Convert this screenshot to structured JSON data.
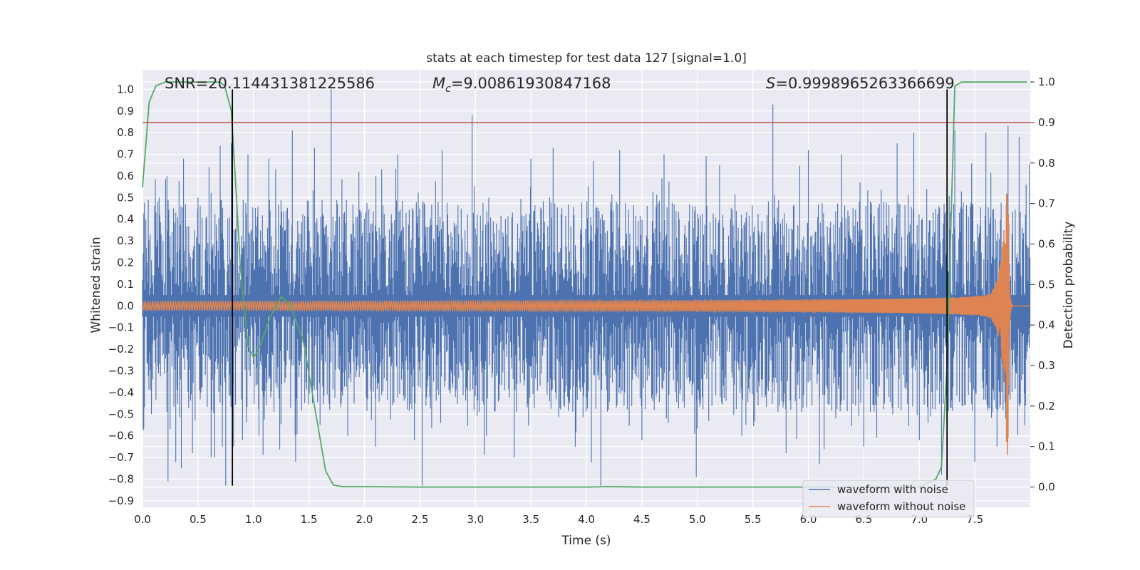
{
  "chart_data": {
    "type": "line",
    "title": "stats at each timestep for test data 127 [signal=1.0]",
    "xlabel": "Time (s)",
    "ylabel": "Whitened strain",
    "y2label": "Detection probability",
    "xlim": [
      0.0,
      8.0
    ],
    "ylim": [
      -0.93,
      1.09
    ],
    "y2lim": [
      -0.05,
      1.03
    ],
    "x_ticks": [
      0.0,
      0.5,
      1.0,
      1.5,
      2.0,
      2.5,
      3.0,
      3.5,
      4.0,
      4.5,
      5.0,
      5.5,
      6.0,
      6.5,
      7.0,
      7.5
    ],
    "y_ticks": [
      -0.9,
      -0.8,
      -0.7,
      -0.6,
      -0.5,
      -0.4,
      -0.3,
      -0.2,
      -0.1,
      0.0,
      0.1,
      0.2,
      0.3,
      0.4,
      0.5,
      0.6,
      0.7,
      0.8,
      0.9,
      1.0
    ],
    "y2_ticks": [
      0.0,
      0.1,
      0.2,
      0.3,
      0.4,
      0.5,
      0.6,
      0.7,
      0.8,
      0.9,
      1.0
    ],
    "grid": true,
    "legend_position": "lower-right",
    "annotations": {
      "snr": "SNR=20.114431381225586",
      "mc_symbol": "M",
      "mc_sub": "c",
      "mc_value": "=9.00861930847168",
      "s_symbol": "S",
      "s_value": "=0.9998965263366699"
    },
    "threshold": {
      "axis": "y2",
      "value": 0.9,
      "color": "#c44e52"
    },
    "vlines": [
      {
        "x": 0.81,
        "ymin": -0.83,
        "ymax": 1.0,
        "color": "#000000"
      },
      {
        "x": 7.25,
        "ymin": -0.83,
        "ymax": 1.0,
        "color": "#000000"
      }
    ],
    "series": [
      {
        "name": "waveform with noise",
        "color": "#4c72b0",
        "axis": "y",
        "kind": "noise",
        "core_amplitude": 0.24,
        "spikes": [
          {
            "x": 0.03,
            "y": 0.4
          },
          {
            "x": 0.08,
            "y": -0.5
          },
          {
            "x": 0.15,
            "y": 0.5
          },
          {
            "x": 0.22,
            "y": 0.6
          },
          {
            "x": 0.23,
            "y": -0.81
          },
          {
            "x": 0.28,
            "y": 0.45
          },
          {
            "x": 0.3,
            "y": -0.72
          },
          {
            "x": 0.35,
            "y": -0.75
          },
          {
            "x": 0.37,
            "y": 0.68
          },
          {
            "x": 0.45,
            "y": -0.68
          },
          {
            "x": 0.5,
            "y": 0.5
          },
          {
            "x": 0.6,
            "y": 0.64
          },
          {
            "x": 0.65,
            "y": -0.7
          },
          {
            "x": 0.7,
            "y": 0.74
          },
          {
            "x": 0.72,
            "y": -0.65
          },
          {
            "x": 0.75,
            "y": -0.83
          },
          {
            "x": 0.8,
            "y": 0.75
          },
          {
            "x": 0.95,
            "y": 0.7
          },
          {
            "x": 1.05,
            "y": -0.6
          },
          {
            "x": 1.2,
            "y": 0.63
          },
          {
            "x": 1.35,
            "y": 0.81
          },
          {
            "x": 1.38,
            "y": -0.72
          },
          {
            "x": 1.55,
            "y": 0.73
          },
          {
            "x": 1.6,
            "y": -0.55
          },
          {
            "x": 1.7,
            "y": 1.0
          },
          {
            "x": 1.85,
            "y": -0.6
          },
          {
            "x": 1.95,
            "y": 0.62
          },
          {
            "x": 2.1,
            "y": -0.65
          },
          {
            "x": 2.3,
            "y": 0.7
          },
          {
            "x": 2.45,
            "y": -0.62
          },
          {
            "x": 2.52,
            "y": -0.83
          },
          {
            "x": 2.7,
            "y": 0.72
          },
          {
            "x": 2.97,
            "y": 0.88
          },
          {
            "x": 3.1,
            "y": -0.6
          },
          {
            "x": 3.35,
            "y": -0.7
          },
          {
            "x": 3.5,
            "y": 0.68
          },
          {
            "x": 3.7,
            "y": 0.73
          },
          {
            "x": 3.9,
            "y": -0.65
          },
          {
            "x": 4.13,
            "y": -0.83
          },
          {
            "x": 4.3,
            "y": 0.72
          },
          {
            "x": 4.5,
            "y": -0.62
          },
          {
            "x": 4.7,
            "y": 0.7
          },
          {
            "x": 4.99,
            "y": -0.79
          },
          {
            "x": 5.2,
            "y": 0.65
          },
          {
            "x": 5.4,
            "y": -0.6
          },
          {
            "x": 5.68,
            "y": 0.93
          },
          {
            "x": 5.8,
            "y": -0.68
          },
          {
            "x": 6.0,
            "y": 0.72
          },
          {
            "x": 6.1,
            "y": -0.73
          },
          {
            "x": 6.3,
            "y": 0.7
          },
          {
            "x": 6.5,
            "y": -0.65
          },
          {
            "x": 6.8,
            "y": 0.75
          },
          {
            "x": 6.95,
            "y": 0.8
          },
          {
            "x": 7.0,
            "y": -0.62
          },
          {
            "x": 7.2,
            "y": -0.78
          },
          {
            "x": 7.32,
            "y": 0.81
          },
          {
            "x": 7.5,
            "y": -0.72
          },
          {
            "x": 7.6,
            "y": 0.8
          },
          {
            "x": 7.7,
            "y": -0.65
          },
          {
            "x": 7.8,
            "y": 0.83
          },
          {
            "x": 7.9,
            "y": 0.78
          },
          {
            "x": 7.95,
            "y": -0.55
          }
        ]
      },
      {
        "name": "waveform without noise",
        "color": "#dd8452",
        "axis": "y",
        "kind": "chirp",
        "start_amplitude": 0.02,
        "peak_amplitude": 0.69,
        "merger_time": 7.8,
        "ringdown_end": 7.84
      },
      {
        "name": "",
        "color": "#55a868",
        "axis": "y2",
        "kind": "probability",
        "x": [
          0.0,
          0.06,
          0.12,
          0.2,
          0.3,
          0.5,
          0.7,
          0.74,
          0.8,
          0.85,
          0.88,
          0.95,
          1.0,
          1.05,
          1.15,
          1.25,
          1.33,
          1.45,
          1.55,
          1.65,
          1.72,
          1.8,
          2.0,
          2.5,
          3.0,
          3.5,
          4.0,
          4.2,
          4.5,
          5.0,
          5.5,
          6.0,
          6.5,
          7.0,
          7.15,
          7.2,
          7.25,
          7.28,
          7.32,
          7.38,
          7.5,
          7.97
        ],
        "y": [
          0.74,
          0.95,
          0.99,
          1.0,
          1.0,
          1.0,
          1.0,
          0.99,
          0.93,
          0.7,
          0.55,
          0.35,
          0.32,
          0.34,
          0.42,
          0.47,
          0.45,
          0.36,
          0.2,
          0.04,
          0.005,
          0.001,
          0.001,
          0.0,
          0.0,
          0.0,
          0.0,
          0.001,
          0.0,
          0.0,
          0.0,
          0.0,
          0.0,
          0.0,
          0.02,
          0.05,
          0.3,
          0.6,
          0.99,
          1.0,
          1.0,
          1.0
        ]
      }
    ]
  }
}
